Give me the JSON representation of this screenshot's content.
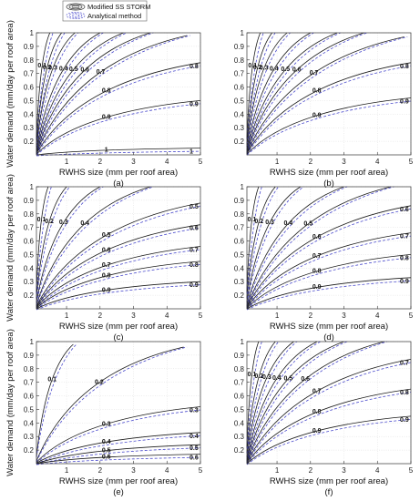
{
  "legend": {
    "entries": [
      {
        "label": "Modified SS STORM",
        "color": "#1a1a1a",
        "style": "solid"
      },
      {
        "label": "Analytical method",
        "color": "#4a4acc",
        "style": "dashed"
      }
    ]
  },
  "chart_data": [
    {
      "type": "contour",
      "panel": "(a)",
      "xlabel": "RWHS size (mm per roof area)",
      "ylabel": "Water demand (mm/day per roof area)",
      "xlim": [
        0.1,
        5
      ],
      "ylim": [
        0.1,
        1
      ],
      "xticks": [
        1,
        2,
        3,
        4,
        5
      ],
      "yticks": [
        0.2,
        0.3,
        0.4,
        0.5,
        0.6,
        0.7,
        0.8,
        0.9,
        1
      ],
      "grid": true,
      "contour_levels": [
        0.1,
        0.2,
        0.3,
        0.4,
        0.5,
        0.6,
        0.7,
        0.8,
        0.9,
        1
      ],
      "curves": [
        {
          "level": 0.1,
          "pts": [
            [
              0.1,
              0.22
            ],
            [
              0.5,
              1.0
            ]
          ]
        },
        {
          "level": 0.2,
          "pts": [
            [
              0.1,
              0.18
            ],
            [
              0.85,
              1.0
            ]
          ]
        },
        {
          "level": 0.3,
          "pts": [
            [
              0.1,
              0.16
            ],
            [
              1.25,
              1.0
            ]
          ]
        },
        {
          "level": 0.4,
          "pts": [
            [
              0.1,
              0.14
            ],
            [
              2.0,
              1.0
            ]
          ]
        },
        {
          "level": 0.5,
          "pts": [
            [
              0.1,
              0.13
            ],
            [
              2.7,
              1.0
            ]
          ]
        },
        {
          "level": 0.6,
          "pts": [
            [
              0.1,
              0.12
            ],
            [
              3.5,
              1.0
            ]
          ]
        },
        {
          "level": 0.7,
          "pts": [
            [
              0.1,
              0.115
            ],
            [
              4.6,
              0.98
            ]
          ]
        },
        {
          "level": 0.8,
          "pts": [
            [
              0.1,
              0.11
            ],
            [
              5.0,
              0.78
            ]
          ]
        },
        {
          "level": 0.9,
          "pts": [
            [
              0.1,
              0.105
            ],
            [
              5.0,
              0.5
            ]
          ]
        },
        {
          "level": 1,
          "pts": [
            [
              0.1,
              0.1
            ],
            [
              5.0,
              0.15
            ]
          ]
        }
      ]
    },
    {
      "type": "contour",
      "panel": "(b)",
      "xlabel": "RWHS size (mm per roof area)",
      "ylabel": "",
      "xlim": [
        0.1,
        5
      ],
      "ylim": [
        0.1,
        1
      ],
      "xticks": [
        1,
        2,
        3,
        4,
        5
      ],
      "yticks": [
        0.2,
        0.3,
        0.4,
        0.5,
        0.6,
        0.7,
        0.8,
        0.9,
        1
      ],
      "grid": true,
      "contour_levels": [
        0.1,
        0.2,
        0.3,
        0.4,
        0.5,
        0.6,
        0.7,
        0.8,
        0.9
      ],
      "curves": [
        {
          "level": 0.1,
          "pts": [
            [
              0.1,
              0.22
            ],
            [
              0.5,
              1.0
            ]
          ]
        },
        {
          "level": 0.2,
          "pts": [
            [
              0.1,
              0.18
            ],
            [
              0.85,
              1.0
            ]
          ]
        },
        {
          "level": 0.3,
          "pts": [
            [
              0.1,
              0.16
            ],
            [
              1.3,
              1.0
            ]
          ]
        },
        {
          "level": 0.4,
          "pts": [
            [
              0.1,
              0.14
            ],
            [
              2.0,
              1.0
            ]
          ]
        },
        {
          "level": 0.5,
          "pts": [
            [
              0.1,
              0.13
            ],
            [
              2.8,
              1.0
            ]
          ]
        },
        {
          "level": 0.6,
          "pts": [
            [
              0.1,
              0.12
            ],
            [
              3.6,
              1.0
            ]
          ]
        },
        {
          "level": 0.7,
          "pts": [
            [
              0.1,
              0.115
            ],
            [
              4.8,
              0.97
            ]
          ]
        },
        {
          "level": 0.8,
          "pts": [
            [
              0.1,
              0.11
            ],
            [
              5.0,
              0.78
            ]
          ]
        },
        {
          "level": 0.9,
          "pts": [
            [
              0.1,
              0.105
            ],
            [
              5.0,
              0.52
            ]
          ]
        }
      ]
    },
    {
      "type": "contour",
      "panel": "(c)",
      "xlabel": "RWHS size (mm per roof area)",
      "ylabel": "Water demand (mm/day per roof area)",
      "xlim": [
        0.1,
        5
      ],
      "ylim": [
        0.1,
        1
      ],
      "xticks": [
        1,
        2,
        3,
        4,
        5
      ],
      "yticks": [
        0.2,
        0.3,
        0.4,
        0.5,
        0.6,
        0.7,
        0.8,
        0.9,
        1
      ],
      "grid": true,
      "contour_levels": [
        0.1,
        0.2,
        0.3,
        0.4,
        0.5,
        0.6,
        0.7,
        0.8,
        0.9
      ],
      "curves": [
        {
          "level": 0.1,
          "pts": [
            [
              0.1,
              0.22
            ],
            [
              0.45,
              1.0
            ]
          ]
        },
        {
          "level": 0.2,
          "pts": [
            [
              0.1,
              0.18
            ],
            [
              1.0,
              1.0
            ]
          ]
        },
        {
          "level": 0.3,
          "pts": [
            [
              0.1,
              0.15
            ],
            [
              2.0,
              1.0
            ]
          ]
        },
        {
          "level": 0.4,
          "pts": [
            [
              0.1,
              0.13
            ],
            [
              3.5,
              1.0
            ]
          ]
        },
        {
          "level": 0.5,
          "pts": [
            [
              0.1,
              0.12
            ],
            [
              5.0,
              0.88
            ]
          ]
        },
        {
          "level": 0.6,
          "pts": [
            [
              0.1,
              0.115
            ],
            [
              5.0,
              0.72
            ]
          ]
        },
        {
          "level": 0.7,
          "pts": [
            [
              0.1,
              0.11
            ],
            [
              5.0,
              0.56
            ]
          ]
        },
        {
          "level": 0.8,
          "pts": [
            [
              0.1,
              0.105
            ],
            [
              5.0,
              0.45
            ]
          ]
        },
        {
          "level": 0.9,
          "pts": [
            [
              0.1,
              0.1
            ],
            [
              5.0,
              0.3
            ]
          ]
        }
      ]
    },
    {
      "type": "contour",
      "panel": "(d)",
      "xlabel": "RWHS size (mm per roof area)",
      "ylabel": "",
      "xlim": [
        0.1,
        5
      ],
      "ylim": [
        0.1,
        1
      ],
      "xticks": [
        1,
        2,
        3,
        4,
        5
      ],
      "yticks": [
        0.2,
        0.3,
        0.4,
        0.5,
        0.6,
        0.7,
        0.8,
        0.9,
        1
      ],
      "grid": true,
      "contour_levels": [
        0.1,
        0.2,
        0.3,
        0.4,
        0.5,
        0.6,
        0.7,
        0.8,
        0.9
      ],
      "curves": [
        {
          "level": 0.1,
          "pts": [
            [
              0.1,
              0.22
            ],
            [
              0.45,
              1.0
            ]
          ]
        },
        {
          "level": 0.2,
          "pts": [
            [
              0.1,
              0.18
            ],
            [
              0.95,
              1.0
            ]
          ]
        },
        {
          "level": 0.3,
          "pts": [
            [
              0.1,
              0.15
            ],
            [
              1.7,
              1.0
            ]
          ]
        },
        {
          "level": 0.4,
          "pts": [
            [
              0.1,
              0.13
            ],
            [
              3.0,
              1.0
            ]
          ]
        },
        {
          "level": 0.5,
          "pts": [
            [
              0.1,
              0.12
            ],
            [
              4.4,
              1.0
            ]
          ]
        },
        {
          "level": 0.6,
          "pts": [
            [
              0.1,
              0.115
            ],
            [
              5.0,
              0.86
            ]
          ]
        },
        {
          "level": 0.7,
          "pts": [
            [
              0.1,
              0.11
            ],
            [
              5.0,
              0.66
            ]
          ]
        },
        {
          "level": 0.8,
          "pts": [
            [
              0.1,
              0.105
            ],
            [
              5.0,
              0.5
            ]
          ]
        },
        {
          "level": 0.9,
          "pts": [
            [
              0.1,
              0.1
            ],
            [
              5.0,
              0.33
            ]
          ]
        }
      ]
    },
    {
      "type": "contour",
      "panel": "(e)",
      "xlabel": "RWHS size (mm per roof area)",
      "ylabel": "Water demand (mm/day per roof area)",
      "xlim": [
        0.1,
        5
      ],
      "ylim": [
        0.1,
        1
      ],
      "xticks": [
        1,
        2,
        3,
        4,
        5
      ],
      "yticks": [
        0.2,
        0.3,
        0.4,
        0.5,
        0.6,
        0.7,
        0.8,
        0.9,
        1
      ],
      "grid": true,
      "contour_levels": [
        0.1,
        0.2,
        0.3,
        0.4,
        0.5,
        0.6
      ],
      "curves": [
        {
          "level": 0.1,
          "pts": [
            [
              0.1,
              0.15
            ],
            [
              1.2,
              0.98
            ]
          ]
        },
        {
          "level": 0.2,
          "pts": [
            [
              0.1,
              0.12
            ],
            [
              4.5,
              0.96
            ]
          ]
        },
        {
          "level": 0.3,
          "pts": [
            [
              0.1,
              0.11
            ],
            [
              5.0,
              0.52
            ]
          ]
        },
        {
          "level": 0.4,
          "pts": [
            [
              0.1,
              0.105
            ],
            [
              5.0,
              0.33
            ]
          ]
        },
        {
          "level": 0.5,
          "pts": [
            [
              0.1,
              0.1
            ],
            [
              5.0,
              0.24
            ]
          ]
        },
        {
          "level": 0.6,
          "pts": [
            [
              0.1,
              0.1
            ],
            [
              5.0,
              0.17
            ]
          ]
        }
      ]
    },
    {
      "type": "contour",
      "panel": "(f)",
      "xlabel": "RWHS size (mm per roof area)",
      "ylabel": "",
      "xlim": [
        0.1,
        5
      ],
      "ylim": [
        0.1,
        1
      ],
      "xticks": [
        1,
        2,
        3,
        4,
        5
      ],
      "yticks": [
        0.2,
        0.3,
        0.4,
        0.5,
        0.6,
        0.7,
        0.8,
        0.9,
        1
      ],
      "grid": true,
      "contour_levels": [
        0.1,
        0.2,
        0.3,
        0.4,
        0.5,
        0.6,
        0.7,
        0.8,
        0.9
      ],
      "curves": [
        {
          "level": 0.1,
          "pts": [
            [
              0.1,
              0.22
            ],
            [
              0.45,
              1.0
            ]
          ]
        },
        {
          "level": 0.2,
          "pts": [
            [
              0.1,
              0.18
            ],
            [
              0.95,
              1.0
            ]
          ]
        },
        {
          "level": 0.3,
          "pts": [
            [
              0.1,
              0.15
            ],
            [
              1.5,
              1.0
            ]
          ]
        },
        {
          "level": 0.4,
          "pts": [
            [
              0.1,
              0.13
            ],
            [
              2.2,
              1.0
            ]
          ]
        },
        {
          "level": 0.5,
          "pts": [
            [
              0.1,
              0.12
            ],
            [
              3.0,
              1.0
            ]
          ]
        },
        {
          "level": 0.6,
          "pts": [
            [
              0.1,
              0.115
            ],
            [
              4.2,
              1.0
            ]
          ]
        },
        {
          "level": 0.7,
          "pts": [
            [
              0.1,
              0.11
            ],
            [
              5.0,
              0.87
            ]
          ]
        },
        {
          "level": 0.8,
          "pts": [
            [
              0.1,
              0.105
            ],
            [
              5.0,
              0.65
            ]
          ]
        },
        {
          "level": 0.9,
          "pts": [
            [
              0.1,
              0.1
            ],
            [
              5.0,
              0.45
            ]
          ]
        }
      ]
    }
  ]
}
